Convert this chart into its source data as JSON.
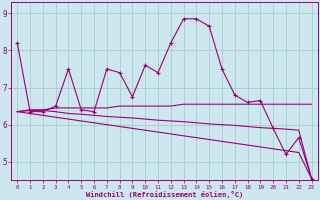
{
  "xlabel": "Windchill (Refroidissement éolien,°C)",
  "background_color": "#cce8ee",
  "grid_color": "#aacccc",
  "line_color": "#990077",
  "xlim": [
    -0.5,
    23.5
  ],
  "ylim": [
    4.5,
    9.3
  ],
  "yticks": [
    5,
    6,
    7,
    8,
    9
  ],
  "xticks": [
    0,
    1,
    2,
    3,
    4,
    5,
    6,
    7,
    8,
    9,
    10,
    11,
    12,
    13,
    14,
    15,
    16,
    17,
    18,
    19,
    20,
    21,
    22,
    23
  ],
  "s1": [
    8.2,
    6.35,
    6.35,
    6.5,
    7.5,
    6.4,
    6.35,
    7.5,
    7.4,
    6.75,
    7.6,
    7.4,
    8.2,
    8.85,
    8.85,
    8.65,
    7.5,
    6.8,
    6.6,
    6.65,
    5.9,
    5.2,
    5.65,
    4.55
  ],
  "s2": [
    6.35,
    6.4,
    6.4,
    6.45,
    6.45,
    6.45,
    6.45,
    6.45,
    6.5,
    6.5,
    6.5,
    6.5,
    6.5,
    6.55,
    6.55,
    6.55,
    6.55,
    6.55,
    6.55,
    6.55,
    6.55,
    6.55,
    6.55,
    6.55
  ],
  "s3": [
    6.35,
    6.38,
    6.38,
    6.35,
    6.3,
    6.28,
    6.25,
    6.22,
    6.2,
    6.18,
    6.15,
    6.12,
    6.1,
    6.08,
    6.05,
    6.02,
    6.0,
    5.98,
    5.95,
    5.92,
    5.9,
    5.88,
    5.85,
    4.55
  ],
  "s4": [
    6.35,
    6.3,
    6.25,
    6.2,
    6.15,
    6.1,
    6.05,
    6.0,
    5.95,
    5.9,
    5.85,
    5.8,
    5.75,
    5.7,
    5.65,
    5.6,
    5.55,
    5.5,
    5.45,
    5.4,
    5.35,
    5.3,
    5.25,
    4.55
  ]
}
